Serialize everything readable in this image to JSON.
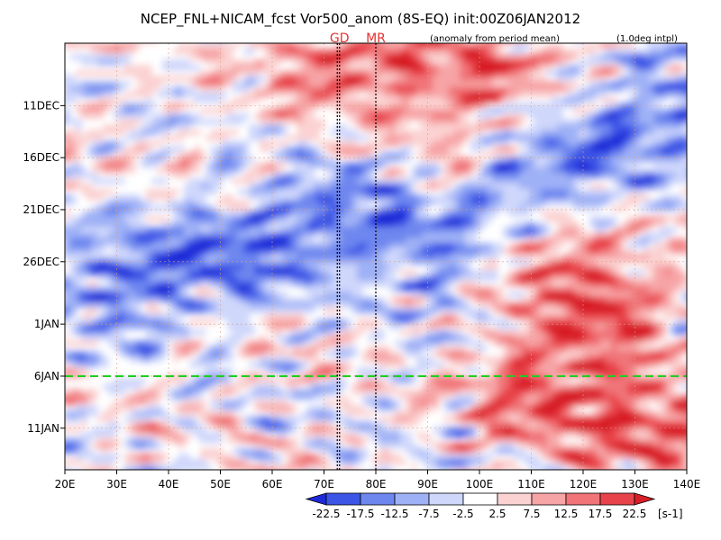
{
  "chart_data": {
    "type": "heatmap",
    "title": "NCEP_FNL+NICAM_fcst Vor500_anom (8S-EQ) init:00Z06JAN2012",
    "subtitle_left": "(anomaly from period mean)",
    "subtitle_right": "(1.0deg intpl)",
    "xlabel": "",
    "ylabel": "",
    "x_range": [
      20,
      140
    ],
    "x_ticks": [
      20,
      30,
      40,
      50,
      60,
      70,
      80,
      90,
      100,
      110,
      120,
      130,
      140
    ],
    "x_tick_labels": [
      "20E",
      "30E",
      "40E",
      "50E",
      "60E",
      "70E",
      "80E",
      "90E",
      "100E",
      "110E",
      "120E",
      "130E",
      "140E"
    ],
    "y_range_days": [
      -32,
      9
    ],
    "y_ticks": [
      {
        "day": -26,
        "label": "11DEC"
      },
      {
        "day": -21,
        "label": "16DEC"
      },
      {
        "day": -16,
        "label": "21DEC"
      },
      {
        "day": -11,
        "label": "26DEC"
      },
      {
        "day": -5,
        "label": "1JAN"
      },
      {
        "day": 0,
        "label": "6JAN"
      },
      {
        "day": 5,
        "label": "11JAN"
      }
    ],
    "init_line_day": 0,
    "markers": [
      {
        "label": "GD",
        "lon": 73
      },
      {
        "label": "MR",
        "lon": 80
      }
    ],
    "colorbar": {
      "levels": [
        "-22.5",
        "-17.5",
        "-12.5",
        "-7.5",
        "-2.5",
        "2.5",
        "7.5",
        "12.5",
        "17.5",
        "22.5"
      ],
      "units": "[s-1]",
      "colors": [
        "#1e2ad8",
        "#3c55e6",
        "#6e87ef",
        "#9fb1f6",
        "#cfd7fb",
        "#ffffff",
        "#fbd2d2",
        "#f7a4a6",
        "#f07478",
        "#e8434a",
        "#d81e28"
      ]
    },
    "features": [
      {
        "name": "negative band",
        "sign": -1,
        "lon_start": 30,
        "day_start": -9,
        "lon_end": 100,
        "day_end": -18,
        "magnitude": 17.5
      },
      {
        "name": "negative band east",
        "sign": -1,
        "lon_start": 95,
        "day_start": -12,
        "lon_end": 140,
        "day_end": -27,
        "magnitude": 15
      },
      {
        "name": "positive band",
        "sign": 1,
        "lon_start": 95,
        "day_start": -18,
        "lon_end": 125,
        "day_end": -7,
        "magnitude": 20
      },
      {
        "name": "positive top",
        "sign": 1,
        "lon_start": 70,
        "day_start": -31,
        "lon_end": 100,
        "day_end": -29,
        "magnitude": 17.5
      },
      {
        "name": "positive forecast",
        "sign": 1,
        "lon_start": 110,
        "day_start": 1,
        "lon_end": 135,
        "day_end": 5,
        "magnitude": 20
      }
    ]
  }
}
